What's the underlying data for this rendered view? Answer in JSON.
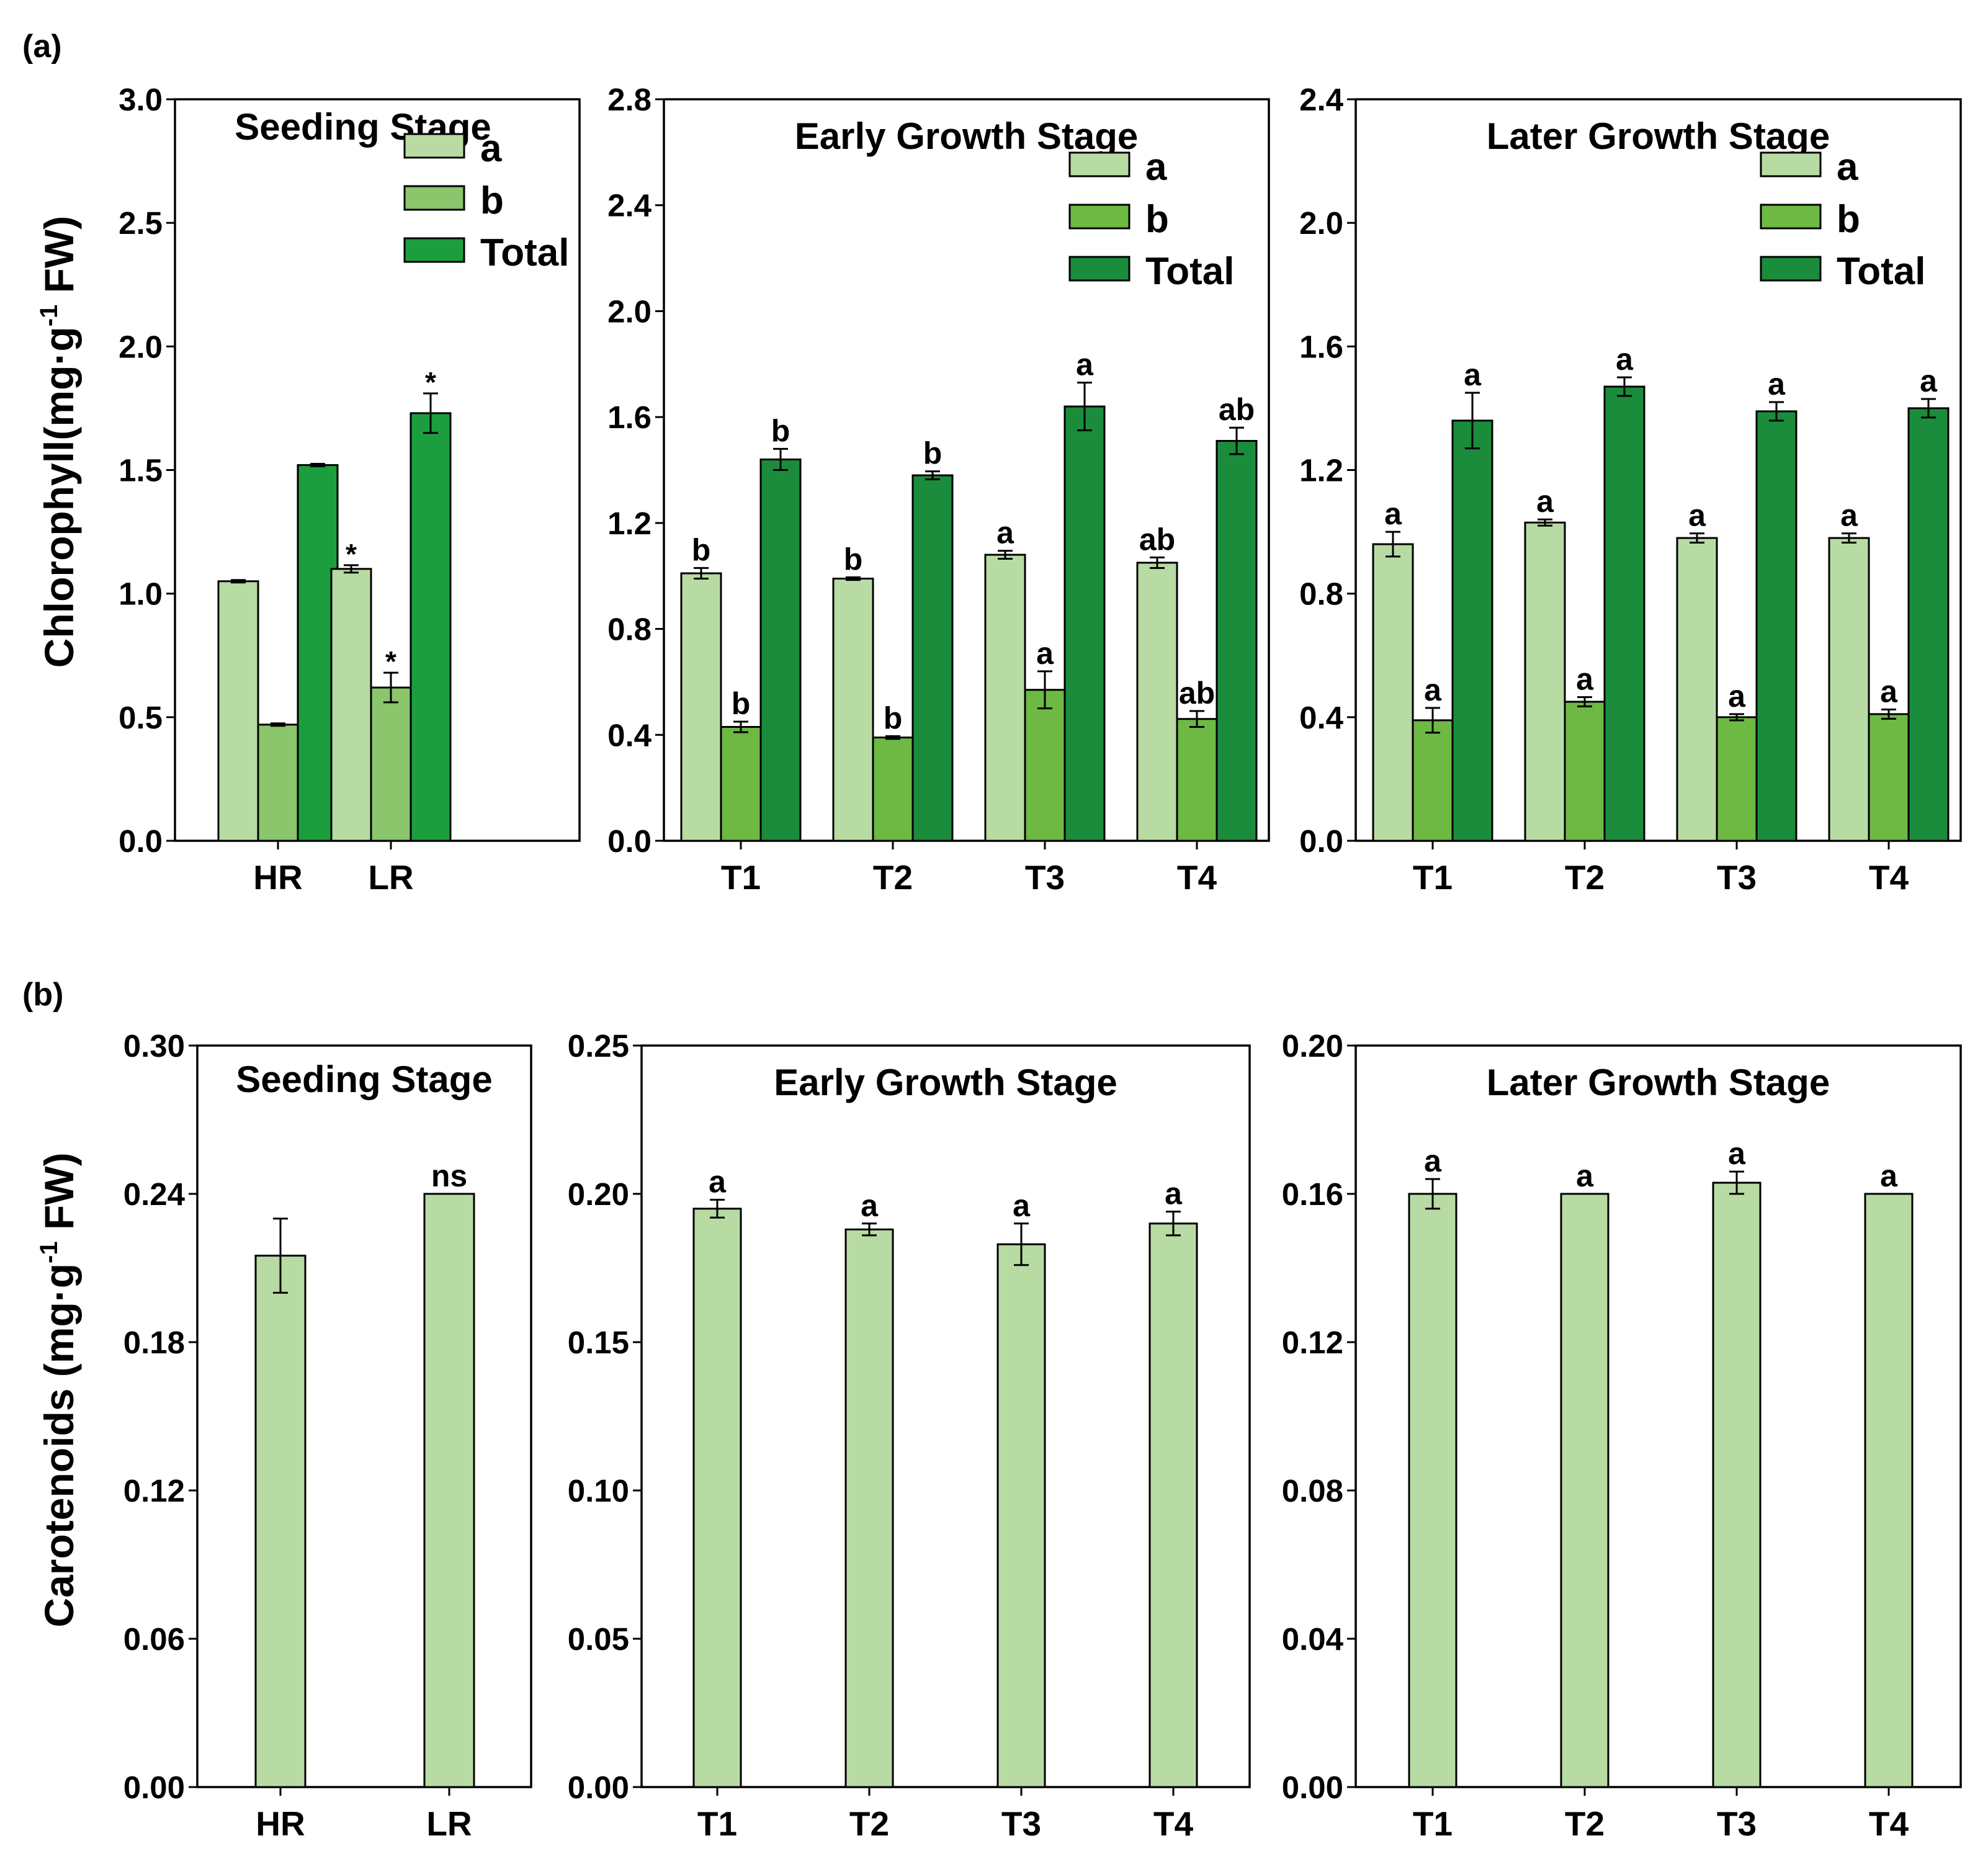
{
  "figure_labels": {
    "a": "(a)",
    "b": "(b)"
  },
  "y_titles": {
    "chlorophyll": {
      "main": "Chlorophyll(mg·g",
      "sup": "-1",
      "tail": " FW)"
    },
    "carotenoids": {
      "main": "Carotenoids (mg·g",
      "sup": "-1",
      "tail": " FW)"
    }
  },
  "colors": {
    "a": "#b8dba4",
    "b_seed": "#8bc56c",
    "b_growth": "#6db944",
    "total_seed": "#1c9e3f",
    "total_growth": "#1b8c3c",
    "axis": "#000000"
  },
  "chart_data": [
    {
      "type": "bar",
      "panel": "a",
      "title": "Seeding Stage",
      "categories": [
        "HR",
        "LR"
      ],
      "ylim": [
        0,
        3.0
      ],
      "yticks": [
        "0.0",
        "0.5",
        "1.0",
        "1.5",
        "2.0",
        "2.5",
        "3.0"
      ],
      "legend": {
        "placement": "top-right",
        "entries": [
          "a",
          "b",
          "Total"
        ]
      },
      "series": [
        {
          "name": "a",
          "color": "#b8dba4",
          "values": [
            1.05,
            1.1
          ],
          "errors": [
            0.005,
            0.015
          ],
          "labels": [
            "",
            "*"
          ]
        },
        {
          "name": "b",
          "color": "#8bc56c",
          "values": [
            0.47,
            0.62
          ],
          "errors": [
            0.005,
            0.06
          ],
          "labels": [
            "",
            "*"
          ]
        },
        {
          "name": "Total",
          "color": "#1c9e3f",
          "values": [
            1.52,
            1.73
          ],
          "errors": [
            0.005,
            0.08
          ],
          "labels": [
            "",
            "*"
          ]
        }
      ]
    },
    {
      "type": "bar",
      "panel": "a",
      "title": "Early Growth Stage",
      "categories": [
        "T1",
        "T2",
        "T3",
        "T4"
      ],
      "ylim": [
        0,
        2.8
      ],
      "yticks": [
        "0.0",
        "0.4",
        "0.8",
        "1.2",
        "1.6",
        "2.0",
        "2.4",
        "2.8"
      ],
      "legend": {
        "placement": "top-right",
        "entries": [
          "a",
          "b",
          "Total"
        ]
      },
      "series": [
        {
          "name": "a",
          "color": "#b8dba4",
          "values": [
            1.01,
            0.99,
            1.08,
            1.05
          ],
          "errors": [
            0.02,
            0.005,
            0.015,
            0.02
          ],
          "labels": [
            "b",
            "b",
            "a",
            "ab"
          ]
        },
        {
          "name": "b",
          "color": "#6db944",
          "values": [
            0.43,
            0.39,
            0.57,
            0.46
          ],
          "errors": [
            0.02,
            0.005,
            0.07,
            0.03
          ],
          "labels": [
            "b",
            "b",
            "a",
            "ab"
          ]
        },
        {
          "name": "Total",
          "color": "#1b8c3c",
          "values": [
            1.44,
            1.38,
            1.64,
            1.51
          ],
          "errors": [
            0.04,
            0.015,
            0.09,
            0.05
          ],
          "labels": [
            "b",
            "b",
            "a",
            "ab"
          ]
        }
      ]
    },
    {
      "type": "bar",
      "panel": "a",
      "title": "Later Growth Stage",
      "categories": [
        "T1",
        "T2",
        "T3",
        "T4"
      ],
      "ylim": [
        0,
        2.4
      ],
      "yticks": [
        "0.0",
        "0.4",
        "0.8",
        "1.2",
        "1.6",
        "2.0",
        "2.4"
      ],
      "legend": {
        "placement": "top-right",
        "entries": [
          "a",
          "b",
          "Total"
        ]
      },
      "series": [
        {
          "name": "a",
          "color": "#b8dba4",
          "values": [
            0.96,
            1.03,
            0.98,
            0.98
          ],
          "errors": [
            0.04,
            0.01,
            0.015,
            0.015
          ],
          "labels": [
            "a",
            "a",
            "a",
            "a"
          ]
        },
        {
          "name": "b",
          "color": "#6db944",
          "values": [
            0.39,
            0.45,
            0.4,
            0.41
          ],
          "errors": [
            0.04,
            0.015,
            0.01,
            0.015
          ],
          "labels": [
            "a",
            "a",
            "a",
            "a"
          ]
        },
        {
          "name": "Total",
          "color": "#1b8c3c",
          "values": [
            1.36,
            1.47,
            1.39,
            1.4
          ],
          "errors": [
            0.09,
            0.03,
            0.03,
            0.03
          ],
          "labels": [
            "a",
            "a",
            "a",
            "a"
          ]
        }
      ]
    },
    {
      "type": "bar",
      "panel": "b",
      "title": "Seeding Stage",
      "categories": [
        "HR",
        "LR"
      ],
      "ylim": [
        0,
        0.3
      ],
      "yticks": [
        "0.00",
        "0.06",
        "0.12",
        "0.18",
        "0.24",
        "0.30"
      ],
      "series": [
        {
          "name": "",
          "color": "#b8dba4",
          "values": [
            0.215,
            0.24
          ],
          "errors": [
            0.015,
            0.0
          ],
          "labels": [
            "",
            "ns"
          ]
        }
      ]
    },
    {
      "type": "bar",
      "panel": "b",
      "title": "Early Growth Stage",
      "categories": [
        "T1",
        "T2",
        "T3",
        "T4"
      ],
      "ylim": [
        0,
        0.25
      ],
      "yticks": [
        "0.00",
        "0.05",
        "0.10",
        "0.15",
        "0.20",
        "0.25"
      ],
      "series": [
        {
          "name": "",
          "color": "#b8dba4",
          "values": [
            0.195,
            0.188,
            0.183,
            0.19
          ],
          "errors": [
            0.003,
            0.002,
            0.007,
            0.004
          ],
          "labels": [
            "a",
            "a",
            "a",
            "a"
          ]
        }
      ]
    },
    {
      "type": "bar",
      "panel": "b",
      "title": "Later Growth Stage",
      "categories": [
        "T1",
        "T2",
        "T3",
        "T4"
      ],
      "ylim": [
        0,
        0.2
      ],
      "yticks": [
        "0.00",
        "0.04",
        "0.08",
        "0.12",
        "0.16",
        "0.20"
      ],
      "series": [
        {
          "name": "",
          "color": "#b8dba4",
          "values": [
            0.16,
            0.16,
            0.163,
            0.16
          ],
          "errors": [
            0.004,
            0.0,
            0.003,
            0.0
          ],
          "labels": [
            "a",
            "a",
            "a",
            "a"
          ]
        }
      ]
    }
  ]
}
